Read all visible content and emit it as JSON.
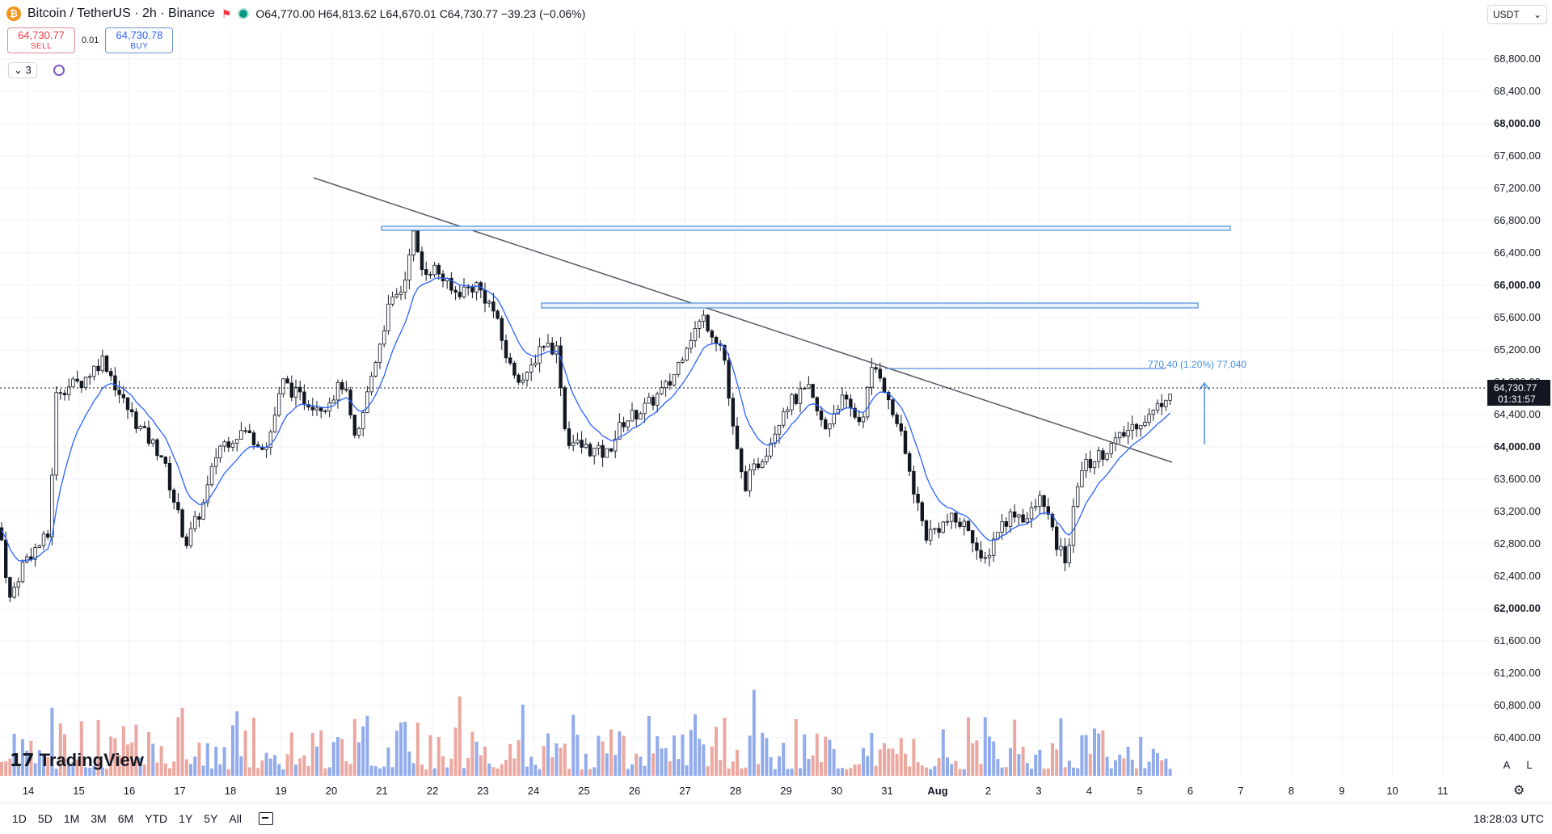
{
  "header": {
    "symbol_icon": "bitcoin-icon",
    "title": "Bitcoin / TetherUS · 2h · Binance",
    "ohlc": "O64,770.00  H64,813.62  L64,670.01  C64,730.77  −39.23 (−0.06%)",
    "currency": "USDT"
  },
  "trade": {
    "sell_price": "64,730.77",
    "sell_label": "SELL",
    "spread": "0.01",
    "buy_price": "64,730.78",
    "buy_label": "BUY"
  },
  "indicators": {
    "count": "3"
  },
  "price_axis": {
    "labels": [
      "68,800.00",
      "68,400.00",
      "68,000.00",
      "67,600.00",
      "67,200.00",
      "66,800.00",
      "66,400.00",
      "66,000.00",
      "65,600.00",
      "65,200.00",
      "64,800.00",
      "64,400.00",
      "64,000.00",
      "63,600.00",
      "63,200.00",
      "62,800.00",
      "62,400.00",
      "62,000.00",
      "61,600.00",
      "61,200.00",
      "60,800.00",
      "60,400.00"
    ],
    "bold_labels": [
      "68,000.00",
      "66,000.00",
      "64,000.00",
      "62,000.00"
    ],
    "current_price": "64,730.77",
    "countdown": "01:31:57"
  },
  "time_axis": {
    "labels": [
      "14",
      "15",
      "16",
      "17",
      "18",
      "19",
      "20",
      "21",
      "22",
      "23",
      "24",
      "25",
      "26",
      "27",
      "28",
      "29",
      "30",
      "31",
      "Aug",
      "2",
      "3",
      "4",
      "5",
      "6",
      "7",
      "8",
      "9",
      "10",
      "11"
    ]
  },
  "annotations": {
    "measure_label": "770.40 (1.20%) 77,040"
  },
  "chart_data": {
    "type": "candlestick",
    "current_price": 64730.77,
    "y_range": [
      59800,
      69100
    ],
    "support_resistance_zones": [
      [
        66700,
        66740
      ],
      [
        65720,
        65780
      ]
    ],
    "target_level": 65010,
    "trendline": [
      {
        "date": "Jul 19 20:00",
        "price": 67300
      },
      {
        "date": "Aug 5 16:00",
        "price": 63780
      }
    ]
  },
  "watermark": {
    "text": "TradingView"
  },
  "axis_buttons": {
    "auto": "A",
    "log": "L"
  },
  "bottom": {
    "ranges": [
      "1D",
      "5D",
      "1M",
      "3M",
      "6M",
      "YTD",
      "1Y",
      "5Y",
      "All"
    ],
    "clock": "18:28:03 UTC"
  },
  "colors": {
    "up": "#131722",
    "down": "#131722",
    "vol_up": "#7f9ee8",
    "vol_down": "#e8998f",
    "ma": "#2962ff",
    "zone": "#4a8fd8"
  }
}
